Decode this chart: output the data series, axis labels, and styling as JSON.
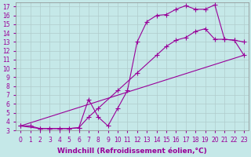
{
  "background_color": "#c5e8e8",
  "grid_color": "#b0cccc",
  "line_color": "#990099",
  "marker": "+",
  "markersize": 4,
  "linewidth": 0.8,
  "xlabel": "Windchill (Refroidissement éolien,°C)",
  "xlabel_fontsize": 6.5,
  "tick_fontsize": 5.5,
  "xlim": [
    -0.5,
    23.5
  ],
  "ylim": [
    3,
    17.5
  ],
  "xticks": [
    0,
    1,
    2,
    3,
    4,
    5,
    6,
    7,
    8,
    9,
    10,
    11,
    12,
    13,
    14,
    15,
    16,
    17,
    18,
    19,
    20,
    21,
    22,
    23
  ],
  "yticks": [
    3,
    4,
    5,
    6,
    7,
    8,
    9,
    10,
    11,
    12,
    13,
    14,
    15,
    16,
    17
  ],
  "lines": [
    {
      "x": [
        0,
        1,
        2,
        3,
        4,
        5,
        6,
        7,
        8,
        9,
        10,
        11,
        12,
        13,
        14,
        15,
        16,
        17,
        18,
        19,
        20,
        21,
        22,
        23
      ],
      "y": [
        3.5,
        3.5,
        3.2,
        3.2,
        3.2,
        3.2,
        3.3,
        6.5,
        4.5,
        3.5,
        5.5,
        7.5,
        13.0,
        15.3,
        16.0,
        16.1,
        16.7,
        17.1,
        16.7,
        16.7,
        17.2,
        13.3,
        13.2,
        13.0
      ]
    },
    {
      "x": [
        0,
        2,
        3,
        4,
        5,
        6,
        7,
        8,
        10,
        12,
        14,
        15,
        16,
        17,
        18,
        19,
        20,
        21,
        22,
        23
      ],
      "y": [
        3.5,
        3.2,
        3.2,
        3.2,
        3.2,
        3.3,
        4.5,
        5.5,
        7.5,
        9.5,
        11.5,
        12.5,
        13.2,
        13.5,
        14.2,
        14.5,
        13.3,
        13.3,
        13.2,
        11.5
      ]
    },
    {
      "x": [
        0,
        23
      ],
      "y": [
        3.5,
        11.5
      ]
    }
  ]
}
